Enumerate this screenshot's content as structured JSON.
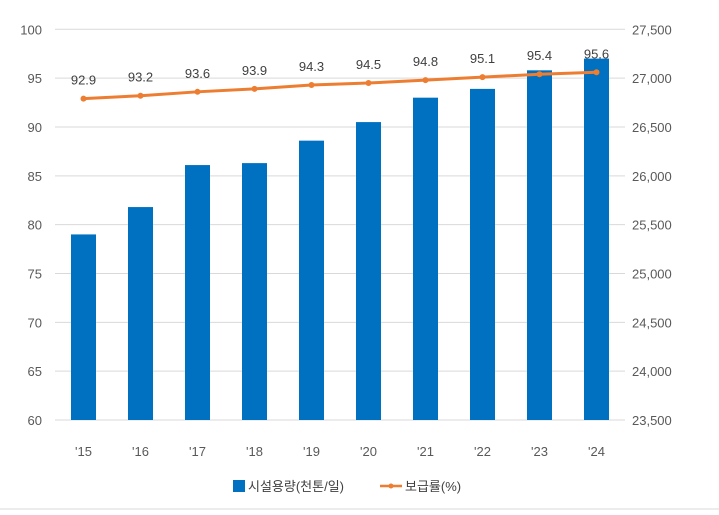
{
  "chart_data": {
    "type": "bar+line",
    "categories": [
      "'15",
      "'16",
      "'17",
      "'18",
      "'19",
      "'20",
      "'21",
      "'22",
      "'23",
      "'24"
    ],
    "series": [
      {
        "name": "시설용량(천톤/일)",
        "type": "bar",
        "axis": "right",
        "color": "#0070C0",
        "values": [
          25400,
          25680,
          26110,
          26130,
          26360,
          26550,
          26800,
          26890,
          27080,
          27200
        ]
      },
      {
        "name": "보급률(%)",
        "type": "line",
        "axis": "left",
        "color": "#ED7D31",
        "values": [
          92.9,
          93.2,
          93.6,
          93.9,
          94.3,
          94.5,
          94.8,
          95.1,
          95.4,
          95.6
        ],
        "data_labels": [
          "92.9",
          "93.2",
          "93.6",
          "93.9",
          "94.3",
          "94.5",
          "94.8",
          "95.1",
          "95.4",
          "95.6"
        ]
      }
    ],
    "left_axis": {
      "range": [
        60,
        100
      ],
      "ticks": [
        "60",
        "65",
        "70",
        "75",
        "80",
        "85",
        "90",
        "95",
        "100"
      ]
    },
    "right_axis": {
      "range": [
        23500,
        27500
      ],
      "ticks": [
        "23,500",
        "24,000",
        "24,500",
        "25,000",
        "25,500",
        "26,000",
        "26,500",
        "27,000",
        "27,500"
      ]
    },
    "grid": true,
    "legend_position": "bottom"
  }
}
